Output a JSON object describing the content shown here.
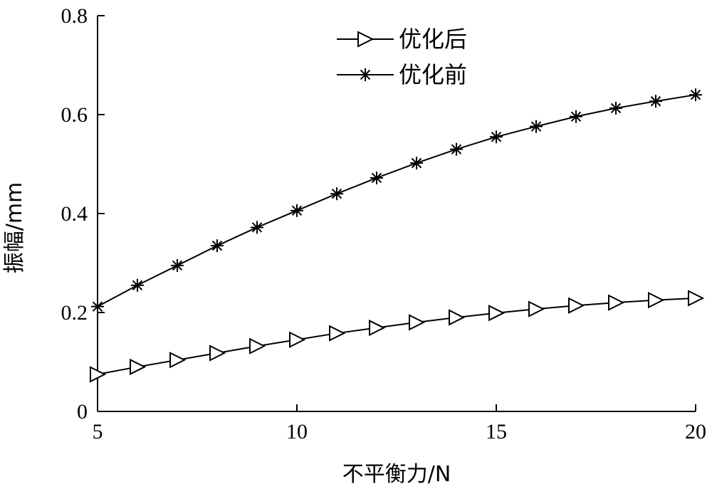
{
  "chart_data": {
    "type": "line",
    "xlabel": "不平衡力/N",
    "ylabel": "振幅/mm",
    "xlim": [
      5,
      20
    ],
    "ylim": [
      0,
      0.8
    ],
    "xticks": [
      5,
      10,
      15,
      20
    ],
    "yticks": [
      0,
      0.2,
      0.4,
      0.6,
      0.8
    ],
    "xtick_labels": [
      "5",
      "10",
      "15",
      "20"
    ],
    "ytick_labels": [
      "0",
      "0.2",
      "0.4",
      "0.6",
      "0.8"
    ],
    "grid": false,
    "legend_position": "top-center",
    "x": [
      5,
      6,
      7,
      8,
      9,
      10,
      11,
      12,
      13,
      14,
      15,
      16,
      17,
      18,
      19,
      20
    ],
    "series": [
      {
        "name": "优化后",
        "marker": "triangle-right",
        "values": [
          0.075,
          0.09,
          0.104,
          0.118,
          0.132,
          0.145,
          0.158,
          0.169,
          0.18,
          0.19,
          0.199,
          0.207,
          0.214,
          0.22,
          0.225,
          0.229
        ]
      },
      {
        "name": "优化前",
        "marker": "asterisk",
        "values": [
          0.212,
          0.255,
          0.295,
          0.335,
          0.372,
          0.406,
          0.44,
          0.472,
          0.502,
          0.53,
          0.555,
          0.576,
          0.596,
          0.613,
          0.627,
          0.64
        ]
      }
    ]
  }
}
